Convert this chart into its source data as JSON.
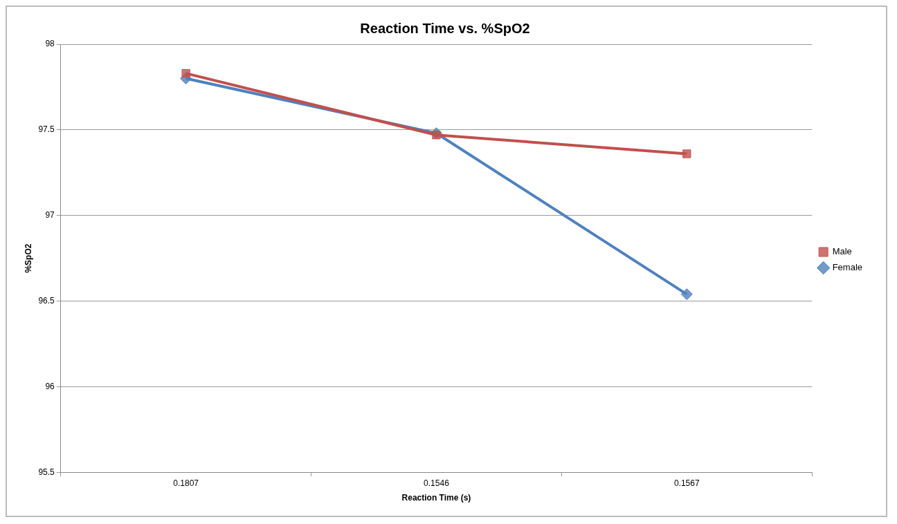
{
  "chart_data": {
    "type": "line",
    "title": "Reaction Time vs. %SpO2",
    "xlabel": "Reaction Time (s)",
    "ylabel": "%SpO2",
    "categories": [
      "0.1807",
      "0.1546",
      "0.1567"
    ],
    "series": [
      {
        "name": "Female",
        "color": "#4f81bd",
        "values": [
          97.8,
          97.48,
          96.54
        ],
        "marker": "diamond"
      },
      {
        "name": "Male",
        "color": "#c0504d",
        "values": [
          97.83,
          97.47,
          97.36
        ],
        "marker": "square"
      }
    ],
    "ylim": [
      95.5,
      98
    ],
    "yticks": [
      95.5,
      96,
      96.5,
      97,
      97.5,
      98
    ],
    "grid": "y",
    "legend": "right",
    "line_style": "solid"
  }
}
